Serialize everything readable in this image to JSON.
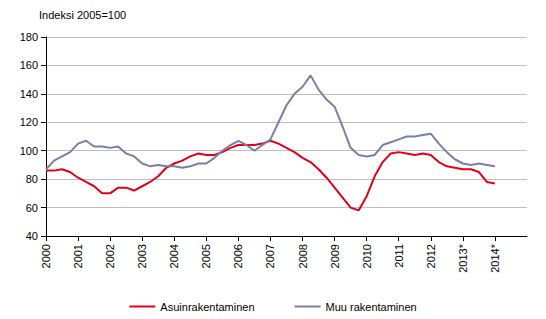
{
  "chart_data": {
    "type": "line",
    "title": "Indeksi 2005=100",
    "categories": [
      "2000",
      null,
      null,
      null,
      "2001",
      null,
      null,
      null,
      "2002",
      null,
      null,
      null,
      "2003",
      null,
      null,
      null,
      "2004",
      null,
      null,
      null,
      "2005",
      null,
      null,
      null,
      "2006",
      null,
      null,
      null,
      "2007",
      null,
      null,
      null,
      "2008",
      null,
      null,
      null,
      "2009",
      null,
      null,
      null,
      "2010",
      null,
      null,
      null,
      "2011",
      null,
      null,
      null,
      "2012",
      null,
      null,
      null,
      "2013*",
      null,
      null,
      null,
      "2014*",
      null,
      null,
      null,
      null
    ],
    "series": [
      {
        "name": "Asuinrakentaminen",
        "color": "#e2001a",
        "values": [
          86,
          86,
          87,
          85,
          81,
          78,
          75,
          70,
          70,
          74,
          74,
          72,
          75,
          78,
          82,
          88,
          91,
          93,
          96,
          98,
          97,
          97,
          99,
          102,
          104,
          104,
          104,
          105,
          107,
          105,
          102,
          99,
          95,
          92,
          87,
          81,
          74,
          67,
          60,
          58,
          68,
          82,
          92,
          98,
          99,
          98,
          97,
          98,
          97,
          92,
          89,
          88,
          87,
          87,
          85,
          78,
          77,
          null,
          null,
          null,
          null
        ]
      },
      {
        "name": "Muu rakentaminen",
        "color": "#7b7fa8",
        "values": [
          87,
          93,
          96,
          99,
          105,
          107,
          103,
          103,
          102,
          103,
          98,
          96,
          91,
          89,
          90,
          89,
          89,
          88,
          89,
          91,
          91,
          95,
          100,
          104,
          107,
          104,
          100,
          104,
          108,
          120,
          132,
          140,
          145,
          153,
          143,
          136,
          131,
          117,
          102,
          97,
          96,
          97,
          104,
          106,
          108,
          110,
          110,
          111,
          112,
          105,
          99,
          94,
          91,
          90,
          91,
          90,
          89,
          null,
          null,
          null,
          null
        ]
      }
    ],
    "ylim": [
      40,
      180
    ],
    "yticks": [
      40,
      60,
      80,
      100,
      120,
      140,
      160,
      180
    ],
    "grid": true,
    "legend": "bottom"
  }
}
